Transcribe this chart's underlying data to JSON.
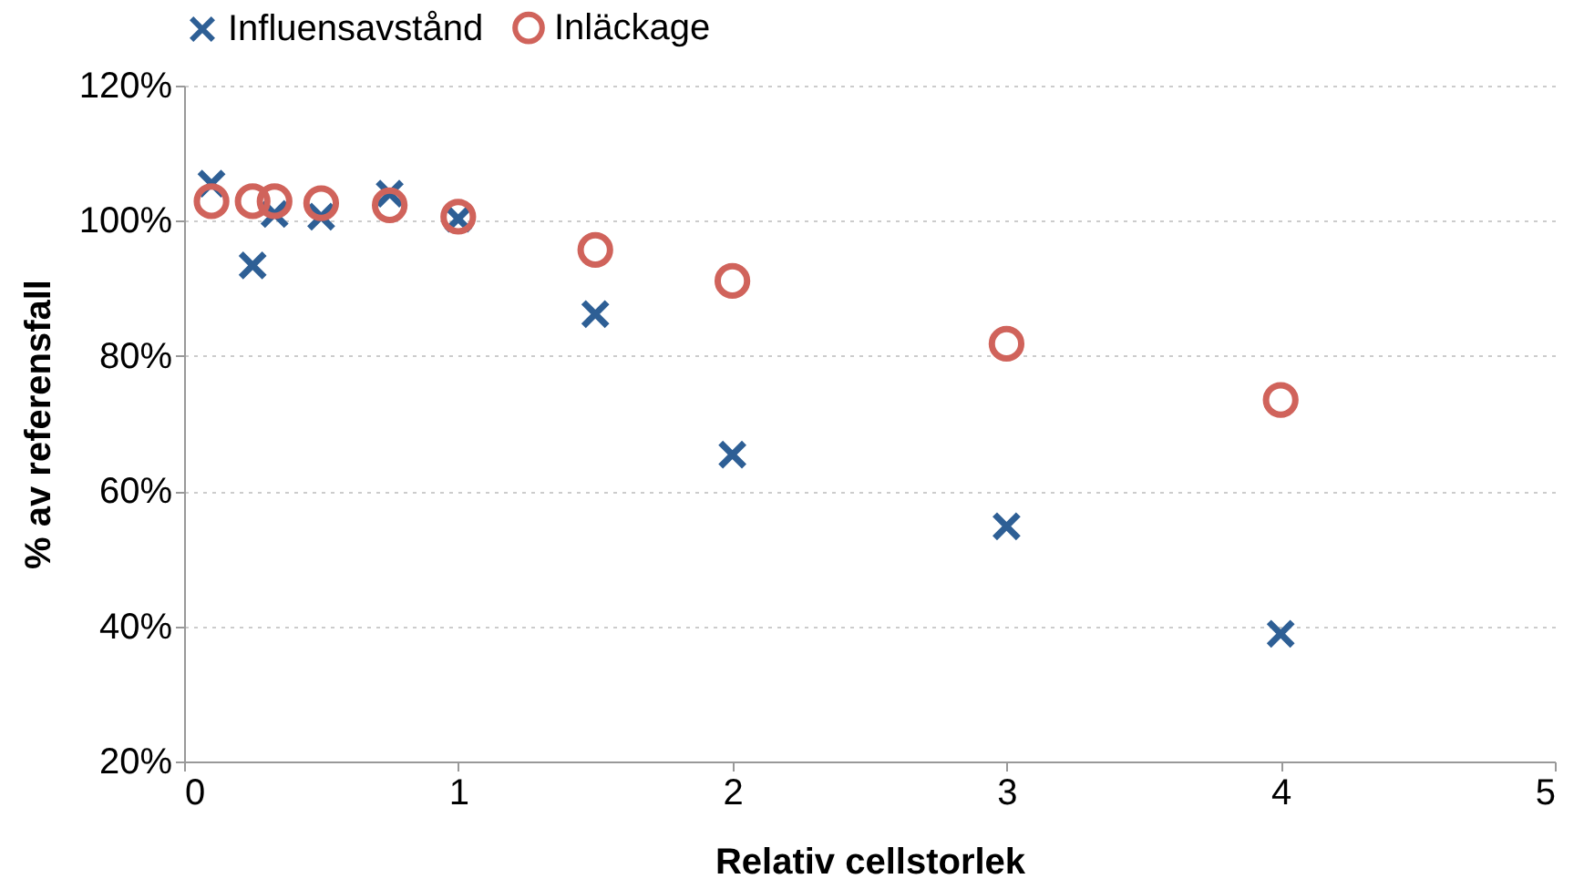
{
  "chart_data": {
    "type": "scatter",
    "xlabel": "Relativ cellstorlek",
    "ylabel": "% av referensfall",
    "xlim": [
      0,
      5
    ],
    "xticks": [
      0,
      1,
      2,
      3,
      4,
      5
    ],
    "ylim": [
      20,
      120
    ],
    "yticks": [
      {
        "value": 20,
        "label": "20%"
      },
      {
        "value": 40,
        "label": "40%"
      },
      {
        "value": 60,
        "label": "60%"
      },
      {
        "value": 80,
        "label": "80%"
      },
      {
        "value": 100,
        "label": "100%"
      },
      {
        "value": 120,
        "label": "120%"
      }
    ],
    "grid": "y",
    "legend": "top",
    "series": [
      {
        "name": "Influensavstånd",
        "color": "#2e5f95",
        "marker": "cross",
        "x": [
          0.1,
          0.25,
          0.33,
          0.5,
          0.75,
          1,
          1.5,
          2,
          3,
          4
        ],
        "values": [
          105.5,
          93.4,
          101,
          100.6,
          104,
          100.3,
          86.2,
          65.4,
          54.8,
          38.9
        ]
      },
      {
        "name": "Inläckage",
        "color": "#d0635b",
        "marker": "circle",
        "x": [
          0.1,
          0.25,
          0.33,
          0.5,
          0.75,
          1,
          1.5,
          2,
          3,
          4
        ],
        "values": [
          102.9,
          102.9,
          102.9,
          102.6,
          102.3,
          100.6,
          95.7,
          91.1,
          81.8,
          73.5
        ]
      }
    ]
  }
}
